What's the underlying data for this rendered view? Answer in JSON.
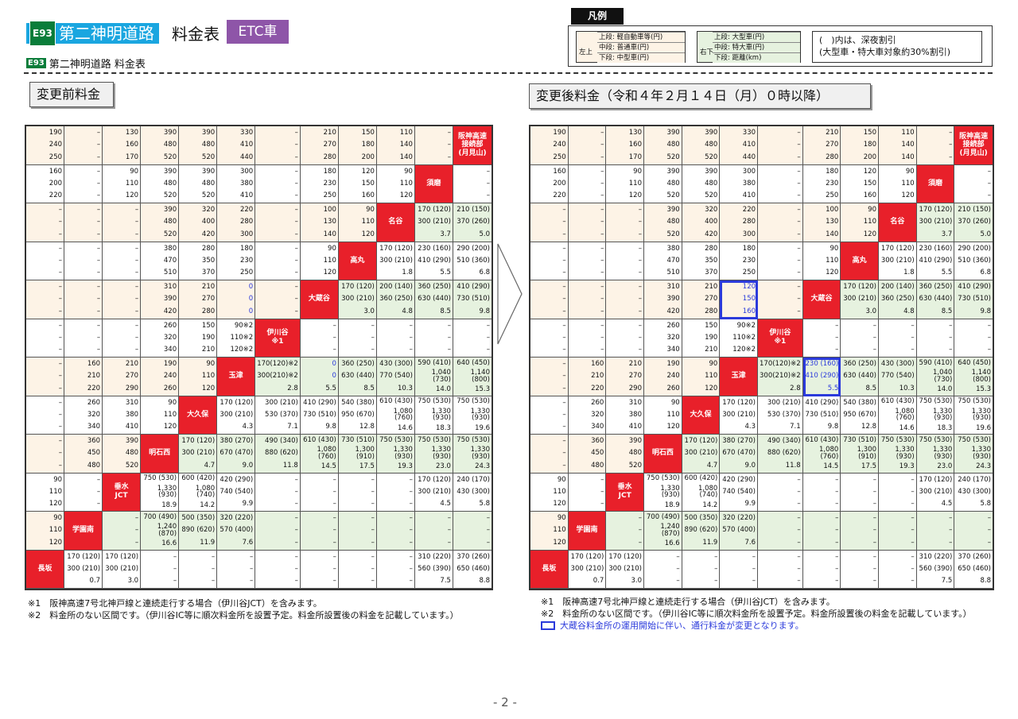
{
  "header": {
    "road_code": "E93",
    "road_name": "第二神明道路",
    "title": "料金表",
    "etc_badge": "ETC車",
    "subtitle_code": "E93",
    "subtitle": "第二神明道路 料金表"
  },
  "legend": {
    "title": "凡例",
    "left_side": "左上",
    "left_rows": [
      "上段: 軽自動車等(円)",
      "中段: 普通車(円)",
      "下段: 中型車(円)"
    ],
    "right_side": "右下",
    "right_rows": [
      "上段: 大型車(円)",
      "中段: 特大車(円)",
      "下段: 距離(km)"
    ],
    "note_line1": "(　)内は、深夜割引",
    "note_line2": "(大型車・特大車対象約30%割引)"
  },
  "before_label": "変更前料金",
  "after_label": "変更後料金（令和４年２月１４日（月）０時以降）",
  "before_grid": [
    [
      [
        "190",
        "240",
        "250"
      ],
      [
        "–",
        "–",
        "–"
      ],
      [
        "130",
        "160",
        "170"
      ],
      [
        "390",
        "480",
        "520"
      ],
      [
        "390",
        "480",
        "520"
      ],
      [
        "330",
        "410",
        "440"
      ],
      [
        "–",
        "–",
        "–"
      ],
      [
        "210",
        "270",
        "280"
      ],
      [
        "150",
        "180",
        "200"
      ],
      [
        "110",
        "140",
        "140"
      ],
      [
        "–",
        "–",
        "–"
      ],
      [
        "阪神高速\n接続部\n(月見山)"
      ]
    ],
    [
      [
        "160",
        "200",
        "220"
      ],
      [
        "–",
        "–",
        "–"
      ],
      [
        "90",
        "110",
        "120"
      ],
      [
        "390",
        "480",
        "520"
      ],
      [
        "390",
        "480",
        "520"
      ],
      [
        "300",
        "380",
        "410"
      ],
      [
        "–",
        "–",
        "–"
      ],
      [
        "180",
        "230",
        "250"
      ],
      [
        "120",
        "150",
        "160"
      ],
      [
        "90",
        "110",
        "120"
      ],
      [
        "須磨"
      ],
      [
        "–",
        "–",
        "–"
      ]
    ],
    [
      [
        "–",
        "–",
        "–"
      ],
      [
        "–",
        "–",
        "–"
      ],
      [
        "–",
        "–",
        "–"
      ],
      [
        "390",
        "480",
        "520"
      ],
      [
        "320",
        "400",
        "420"
      ],
      [
        "220",
        "280",
        "300"
      ],
      [
        "–",
        "–",
        "–"
      ],
      [
        "100",
        "130",
        "140"
      ],
      [
        "90",
        "110",
        "120"
      ],
      [
        "名谷"
      ],
      [
        "170 (120)",
        "300 (210)",
        "3.7"
      ],
      [
        "210 (150)",
        "370 (260)",
        "5.0"
      ]
    ],
    [
      [
        "–",
        "–",
        "–"
      ],
      [
        "–",
        "–",
        "–"
      ],
      [
        "–",
        "–",
        "–"
      ],
      [
        "380",
        "470",
        "510"
      ],
      [
        "280",
        "350",
        "370"
      ],
      [
        "180",
        "230",
        "250"
      ],
      [
        "–",
        "–",
        "–"
      ],
      [
        "90",
        "110",
        "120"
      ],
      [
        "高丸"
      ],
      [
        "170 (120)",
        "300 (210)",
        "1.8"
      ],
      [
        "230 (160)",
        "410 (290)",
        "5.5"
      ],
      [
        "290 (200)",
        "510 (360)",
        "6.8"
      ]
    ],
    [
      [
        "–",
        "–",
        "–"
      ],
      [
        "–",
        "–",
        "–"
      ],
      [
        "–",
        "–",
        "–"
      ],
      [
        "310",
        "390",
        "420"
      ],
      [
        "210",
        "270",
        "280"
      ],
      [
        "0",
        "0",
        "0"
      ],
      [
        "–",
        "–",
        "–"
      ],
      [
        "大蔵谷"
      ],
      [
        "170 (120)",
        "300 (210)",
        "3.0"
      ],
      [
        "200 (140)",
        "360 (250)",
        "4.8"
      ],
      [
        "360 (250)",
        "630 (440)",
        "8.5"
      ],
      [
        "410 (290)",
        "730 (510)",
        "9.8"
      ]
    ],
    [
      [
        "–",
        "–",
        "–"
      ],
      [
        "–",
        "–",
        "–"
      ],
      [
        "–",
        "–",
        "–"
      ],
      [
        "260",
        "320",
        "340"
      ],
      [
        "150",
        "190",
        "210"
      ],
      [
        "90※2",
        "110※2",
        "120※2"
      ],
      [
        "伊川谷\n※1"
      ],
      [
        "–",
        "–",
        "–"
      ],
      [
        "–",
        "–",
        "–"
      ],
      [
        "–",
        "–",
        "–"
      ],
      [
        "–",
        "–",
        "–"
      ],
      [
        "–",
        "–",
        "–"
      ]
    ],
    [
      [
        "–",
        "–",
        "–"
      ],
      [
        "160",
        "210",
        "220"
      ],
      [
        "210",
        "270",
        "290"
      ],
      [
        "190",
        "240",
        "260"
      ],
      [
        "90",
        "110",
        "120"
      ],
      [
        "玉津"
      ],
      [
        "170(120)※2",
        "300(210)※2",
        "2.8"
      ],
      [
        "0",
        "0",
        "5.5"
      ],
      [
        "360 (250)",
        "630 (440)",
        "8.5"
      ],
      [
        "430 (300)",
        "770 (540)",
        "10.3"
      ],
      [
        "590 (410)",
        "1,040 (730)",
        "14.0"
      ],
      [
        "640 (450)",
        "1,140 (800)",
        "15.3"
      ]
    ],
    [
      [
        "–",
        "–",
        "–"
      ],
      [
        "260",
        "320",
        "340"
      ],
      [
        "310",
        "380",
        "410"
      ],
      [
        "90",
        "110",
        "120"
      ],
      [
        "大久保"
      ],
      [
        "170 (120)",
        "300 (210)",
        "4.3"
      ],
      [
        "300 (210)",
        "530 (370)",
        "7.1"
      ],
      [
        "410 (290)",
        "730 (510)",
        "9.8"
      ],
      [
        "540 (380)",
        "950 (670)",
        "12.8"
      ],
      [
        "610 (430)",
        "1,080 (760)",
        "14.6"
      ],
      [
        "750 (530)",
        "1,330 (930)",
        "18.3"
      ],
      [
        "750 (530)",
        "1,330 (930)",
        "19.6"
      ]
    ],
    [
      [
        "–",
        "–",
        "–"
      ],
      [
        "360",
        "450",
        "480"
      ],
      [
        "390",
        "480",
        "520"
      ],
      [
        "明石西"
      ],
      [
        "170 (120)",
        "300 (210)",
        "4.7"
      ],
      [
        "380 (270)",
        "670 (470)",
        "9.0"
      ],
      [
        "490 (340)",
        "880 (620)",
        "11.8"
      ],
      [
        "610 (430)",
        "1,080 (760)",
        "14.5"
      ],
      [
        "730 (510)",
        "1,300 (910)",
        "17.5"
      ],
      [
        "750 (530)",
        "1,330 (930)",
        "19.3"
      ],
      [
        "750 (530)",
        "1,330 (930)",
        "23.0"
      ],
      [
        "750 (530)",
        "1,330 (930)",
        "24.3"
      ]
    ],
    [
      [
        "90",
        "110",
        "120"
      ],
      [
        "–",
        "–",
        "–"
      ],
      [
        "垂水\nJCT"
      ],
      [
        "750 (530)",
        "1,330 (930)",
        "18.9"
      ],
      [
        "600 (420)",
        "1,080 (740)",
        "14.2"
      ],
      [
        "420 (290)",
        "740 (540)",
        "9.9"
      ],
      [
        "–",
        "–",
        "–"
      ],
      [
        "–",
        "–",
        "–"
      ],
      [
        "–",
        "–",
        "–"
      ],
      [
        "–",
        "–",
        "–"
      ],
      [
        "170 (120)",
        "300 (210)",
        "4.5"
      ],
      [
        "240 (170)",
        "430 (300)",
        "5.8"
      ]
    ],
    [
      [
        "90",
        "110",
        "120"
      ],
      [
        "学園南"
      ],
      [
        "–",
        "–",
        "–"
      ],
      [
        "700 (490)",
        "1,240 (870)",
        "16.6"
      ],
      [
        "500 (350)",
        "890 (620)",
        "11.9"
      ],
      [
        "320 (220)",
        "570 (400)",
        "7.6"
      ],
      [
        "–",
        "–",
        "–"
      ],
      [
        "–",
        "–",
        "–"
      ],
      [
        "–",
        "–",
        "–"
      ],
      [
        "–",
        "–",
        "–"
      ],
      [
        "–",
        "–",
        "–"
      ],
      [
        "–",
        "–",
        "–"
      ]
    ],
    [
      [
        "長坂"
      ],
      [
        "170 (120)",
        "300 (210)",
        "0.7"
      ],
      [
        "170 (120)",
        "300 (210)",
        "3.0"
      ],
      [
        "–",
        "–",
        "–"
      ],
      [
        "–",
        "–",
        "–"
      ],
      [
        "–",
        "–",
        "–"
      ],
      [
        "–",
        "–",
        "–"
      ],
      [
        "–",
        "–",
        "–"
      ],
      [
        "–",
        "–",
        "–"
      ],
      [
        "–",
        "–",
        "–"
      ],
      [
        "310 (220)",
        "560 (390)",
        "7.5"
      ],
      [
        "370 (260)",
        "650 (460)",
        "8.8"
      ]
    ]
  ],
  "after_grid": [
    [
      [
        "190",
        "240",
        "250"
      ],
      [
        "–",
        "–",
        "–"
      ],
      [
        "130",
        "160",
        "170"
      ],
      [
        "390",
        "480",
        "520"
      ],
      [
        "390",
        "480",
        "520"
      ],
      [
        "330",
        "410",
        "440"
      ],
      [
        "–",
        "–",
        "–"
      ],
      [
        "210",
        "270",
        "280"
      ],
      [
        "150",
        "180",
        "200"
      ],
      [
        "110",
        "140",
        "140"
      ],
      [
        "–",
        "–",
        "–"
      ],
      [
        "阪神高速\n接続部\n(月見山)"
      ]
    ],
    [
      [
        "160",
        "200",
        "220"
      ],
      [
        "–",
        "–",
        "–"
      ],
      [
        "90",
        "110",
        "120"
      ],
      [
        "390",
        "480",
        "520"
      ],
      [
        "390",
        "480",
        "520"
      ],
      [
        "300",
        "380",
        "410"
      ],
      [
        "–",
        "–",
        "–"
      ],
      [
        "180",
        "230",
        "250"
      ],
      [
        "120",
        "150",
        "160"
      ],
      [
        "90",
        "110",
        "120"
      ],
      [
        "須磨"
      ],
      [
        "–",
        "–",
        "–"
      ]
    ],
    [
      [
        "–",
        "–",
        "–"
      ],
      [
        "–",
        "–",
        "–"
      ],
      [
        "–",
        "–",
        "–"
      ],
      [
        "390",
        "480",
        "520"
      ],
      [
        "320",
        "400",
        "420"
      ],
      [
        "220",
        "280",
        "300"
      ],
      [
        "–",
        "–",
        "–"
      ],
      [
        "100",
        "130",
        "140"
      ],
      [
        "90",
        "110",
        "120"
      ],
      [
        "名谷"
      ],
      [
        "170 (120)",
        "300 (210)",
        "3.7"
      ],
      [
        "210 (150)",
        "370 (260)",
        "5.0"
      ]
    ],
    [
      [
        "–",
        "–",
        "–"
      ],
      [
        "–",
        "–",
        "–"
      ],
      [
        "–",
        "–",
        "–"
      ],
      [
        "380",
        "470",
        "510"
      ],
      [
        "280",
        "350",
        "370"
      ],
      [
        "180",
        "230",
        "250"
      ],
      [
        "–",
        "–",
        "–"
      ],
      [
        "90",
        "110",
        "120"
      ],
      [
        "高丸"
      ],
      [
        "170 (120)",
        "300 (210)",
        "1.8"
      ],
      [
        "230 (160)",
        "410 (290)",
        "5.5"
      ],
      [
        "290 (200)",
        "510 (360)",
        "6.8"
      ]
    ],
    [
      [
        "–",
        "–",
        "–"
      ],
      [
        "–",
        "–",
        "–"
      ],
      [
        "–",
        "–",
        "–"
      ],
      [
        "310",
        "390",
        "420"
      ],
      [
        "210",
        "270",
        "280"
      ],
      [
        "120",
        "150",
        "160"
      ],
      [
        "–",
        "–",
        "–"
      ],
      [
        "大蔵谷"
      ],
      [
        "170 (120)",
        "300 (210)",
        "3.0"
      ],
      [
        "200 (140)",
        "360 (250)",
        "4.8"
      ],
      [
        "360 (250)",
        "630 (440)",
        "8.5"
      ],
      [
        "410 (290)",
        "730 (510)",
        "9.8"
      ]
    ],
    [
      [
        "–",
        "–",
        "–"
      ],
      [
        "–",
        "–",
        "–"
      ],
      [
        "–",
        "–",
        "–"
      ],
      [
        "260",
        "320",
        "340"
      ],
      [
        "150",
        "190",
        "210"
      ],
      [
        "90※2",
        "110※2",
        "120※2"
      ],
      [
        "伊川谷\n※1"
      ],
      [
        "–",
        "–",
        "–"
      ],
      [
        "–",
        "–",
        "–"
      ],
      [
        "–",
        "–",
        "–"
      ],
      [
        "–",
        "–",
        "–"
      ],
      [
        "–",
        "–",
        "–"
      ]
    ],
    [
      [
        "–",
        "–",
        "–"
      ],
      [
        "160",
        "210",
        "220"
      ],
      [
        "210",
        "270",
        "290"
      ],
      [
        "190",
        "240",
        "260"
      ],
      [
        "90",
        "110",
        "120"
      ],
      [
        "玉津"
      ],
      [
        "170(120)※2",
        "300(210)※2",
        "2.8"
      ],
      [
        "230 (160)",
        "410 (290)",
        "5.5"
      ],
      [
        "360 (250)",
        "630 (440)",
        "8.5"
      ],
      [
        "430 (300)",
        "770 (540)",
        "10.3"
      ],
      [
        "590 (410)",
        "1,040 (730)",
        "14.0"
      ],
      [
        "640 (450)",
        "1,140 (800)",
        "15.3"
      ]
    ],
    [
      [
        "–",
        "–",
        "–"
      ],
      [
        "260",
        "320",
        "340"
      ],
      [
        "310",
        "380",
        "410"
      ],
      [
        "90",
        "110",
        "120"
      ],
      [
        "大久保"
      ],
      [
        "170 (120)",
        "300 (210)",
        "4.3"
      ],
      [
        "300 (210)",
        "530 (370)",
        "7.1"
      ],
      [
        "410 (290)",
        "730 (510)",
        "9.8"
      ],
      [
        "540 (380)",
        "950 (670)",
        "12.8"
      ],
      [
        "610 (430)",
        "1,080 (760)",
        "14.6"
      ],
      [
        "750 (530)",
        "1,330 (930)",
        "18.3"
      ],
      [
        "750 (530)",
        "1,330 (930)",
        "19.6"
      ]
    ],
    [
      [
        "–",
        "–",
        "–"
      ],
      [
        "360",
        "450",
        "480"
      ],
      [
        "390",
        "480",
        "520"
      ],
      [
        "明石西"
      ],
      [
        "170 (120)",
        "300 (210)",
        "4.7"
      ],
      [
        "380 (270)",
        "670 (470)",
        "9.0"
      ],
      [
        "490 (340)",
        "880 (620)",
        "11.8"
      ],
      [
        "610 (430)",
        "1,080 (760)",
        "14.5"
      ],
      [
        "730 (510)",
        "1,300 (910)",
        "17.5"
      ],
      [
        "750 (530)",
        "1,330 (930)",
        "19.3"
      ],
      [
        "750 (530)",
        "1,330 (930)",
        "23.0"
      ],
      [
        "750 (530)",
        "1,330 (930)",
        "24.3"
      ]
    ],
    [
      [
        "90",
        "110",
        "120"
      ],
      [
        "–",
        "–",
        "–"
      ],
      [
        "垂水\nJCT"
      ],
      [
        "750 (530)",
        "1,330 (930)",
        "18.9"
      ],
      [
        "600 (420)",
        "1,080 (740)",
        "14.2"
      ],
      [
        "420 (290)",
        "740 (540)",
        "9.9"
      ],
      [
        "–",
        "–",
        "–"
      ],
      [
        "–",
        "–",
        "–"
      ],
      [
        "–",
        "–",
        "–"
      ],
      [
        "–",
        "–",
        "–"
      ],
      [
        "170 (120)",
        "300 (210)",
        "4.5"
      ],
      [
        "240 (170)",
        "430 (300)",
        "5.8"
      ]
    ],
    [
      [
        "90",
        "110",
        "120"
      ],
      [
        "学園南"
      ],
      [
        "–",
        "–",
        "–"
      ],
      [
        "700 (490)",
        "1,240 (870)",
        "16.6"
      ],
      [
        "500 (350)",
        "890 (620)",
        "11.9"
      ],
      [
        "320 (220)",
        "570 (400)",
        "7.6"
      ],
      [
        "–",
        "–",
        "–"
      ],
      [
        "–",
        "–",
        "–"
      ],
      [
        "–",
        "–",
        "–"
      ],
      [
        "–",
        "–",
        "–"
      ],
      [
        "–",
        "–",
        "–"
      ],
      [
        "–",
        "–",
        "–"
      ]
    ],
    [
      [
        "長坂"
      ],
      [
        "170 (120)",
        "300 (210)",
        "0.7"
      ],
      [
        "170 (120)",
        "300 (210)",
        "3.0"
      ],
      [
        "–",
        "–",
        "–"
      ],
      [
        "–",
        "–",
        "–"
      ],
      [
        "–",
        "–",
        "–"
      ],
      [
        "–",
        "–",
        "–"
      ],
      [
        "–",
        "–",
        "–"
      ],
      [
        "–",
        "–",
        "–"
      ],
      [
        "–",
        "–",
        "–"
      ],
      [
        "310 (220)",
        "560 (390)",
        "7.5"
      ],
      [
        "370 (260)",
        "650 (460)",
        "8.8"
      ]
    ]
  ],
  "notes": {
    "n1": "※1　阪神高速7号北神戸線と連続走行する場合（伊川谷JCT）を含みます。",
    "n2": "※2　料金所のない区間です。（伊川谷IC等に順次料金所を設置予定。料金所設置後の料金を記載しています。）",
    "n3": "大蔵谷料金所の運用開始に伴い、通行料金が変更となります。"
  },
  "page_number": "- 2 -",
  "colors": {
    "orange_cell": "#fdf3e6",
    "green_cell": "#e6f2df",
    "station": "#e8202a",
    "changed": "#2b3adb",
    "etc_badge": "#8e55a8",
    "road_badge": "#1aa6e0"
  }
}
